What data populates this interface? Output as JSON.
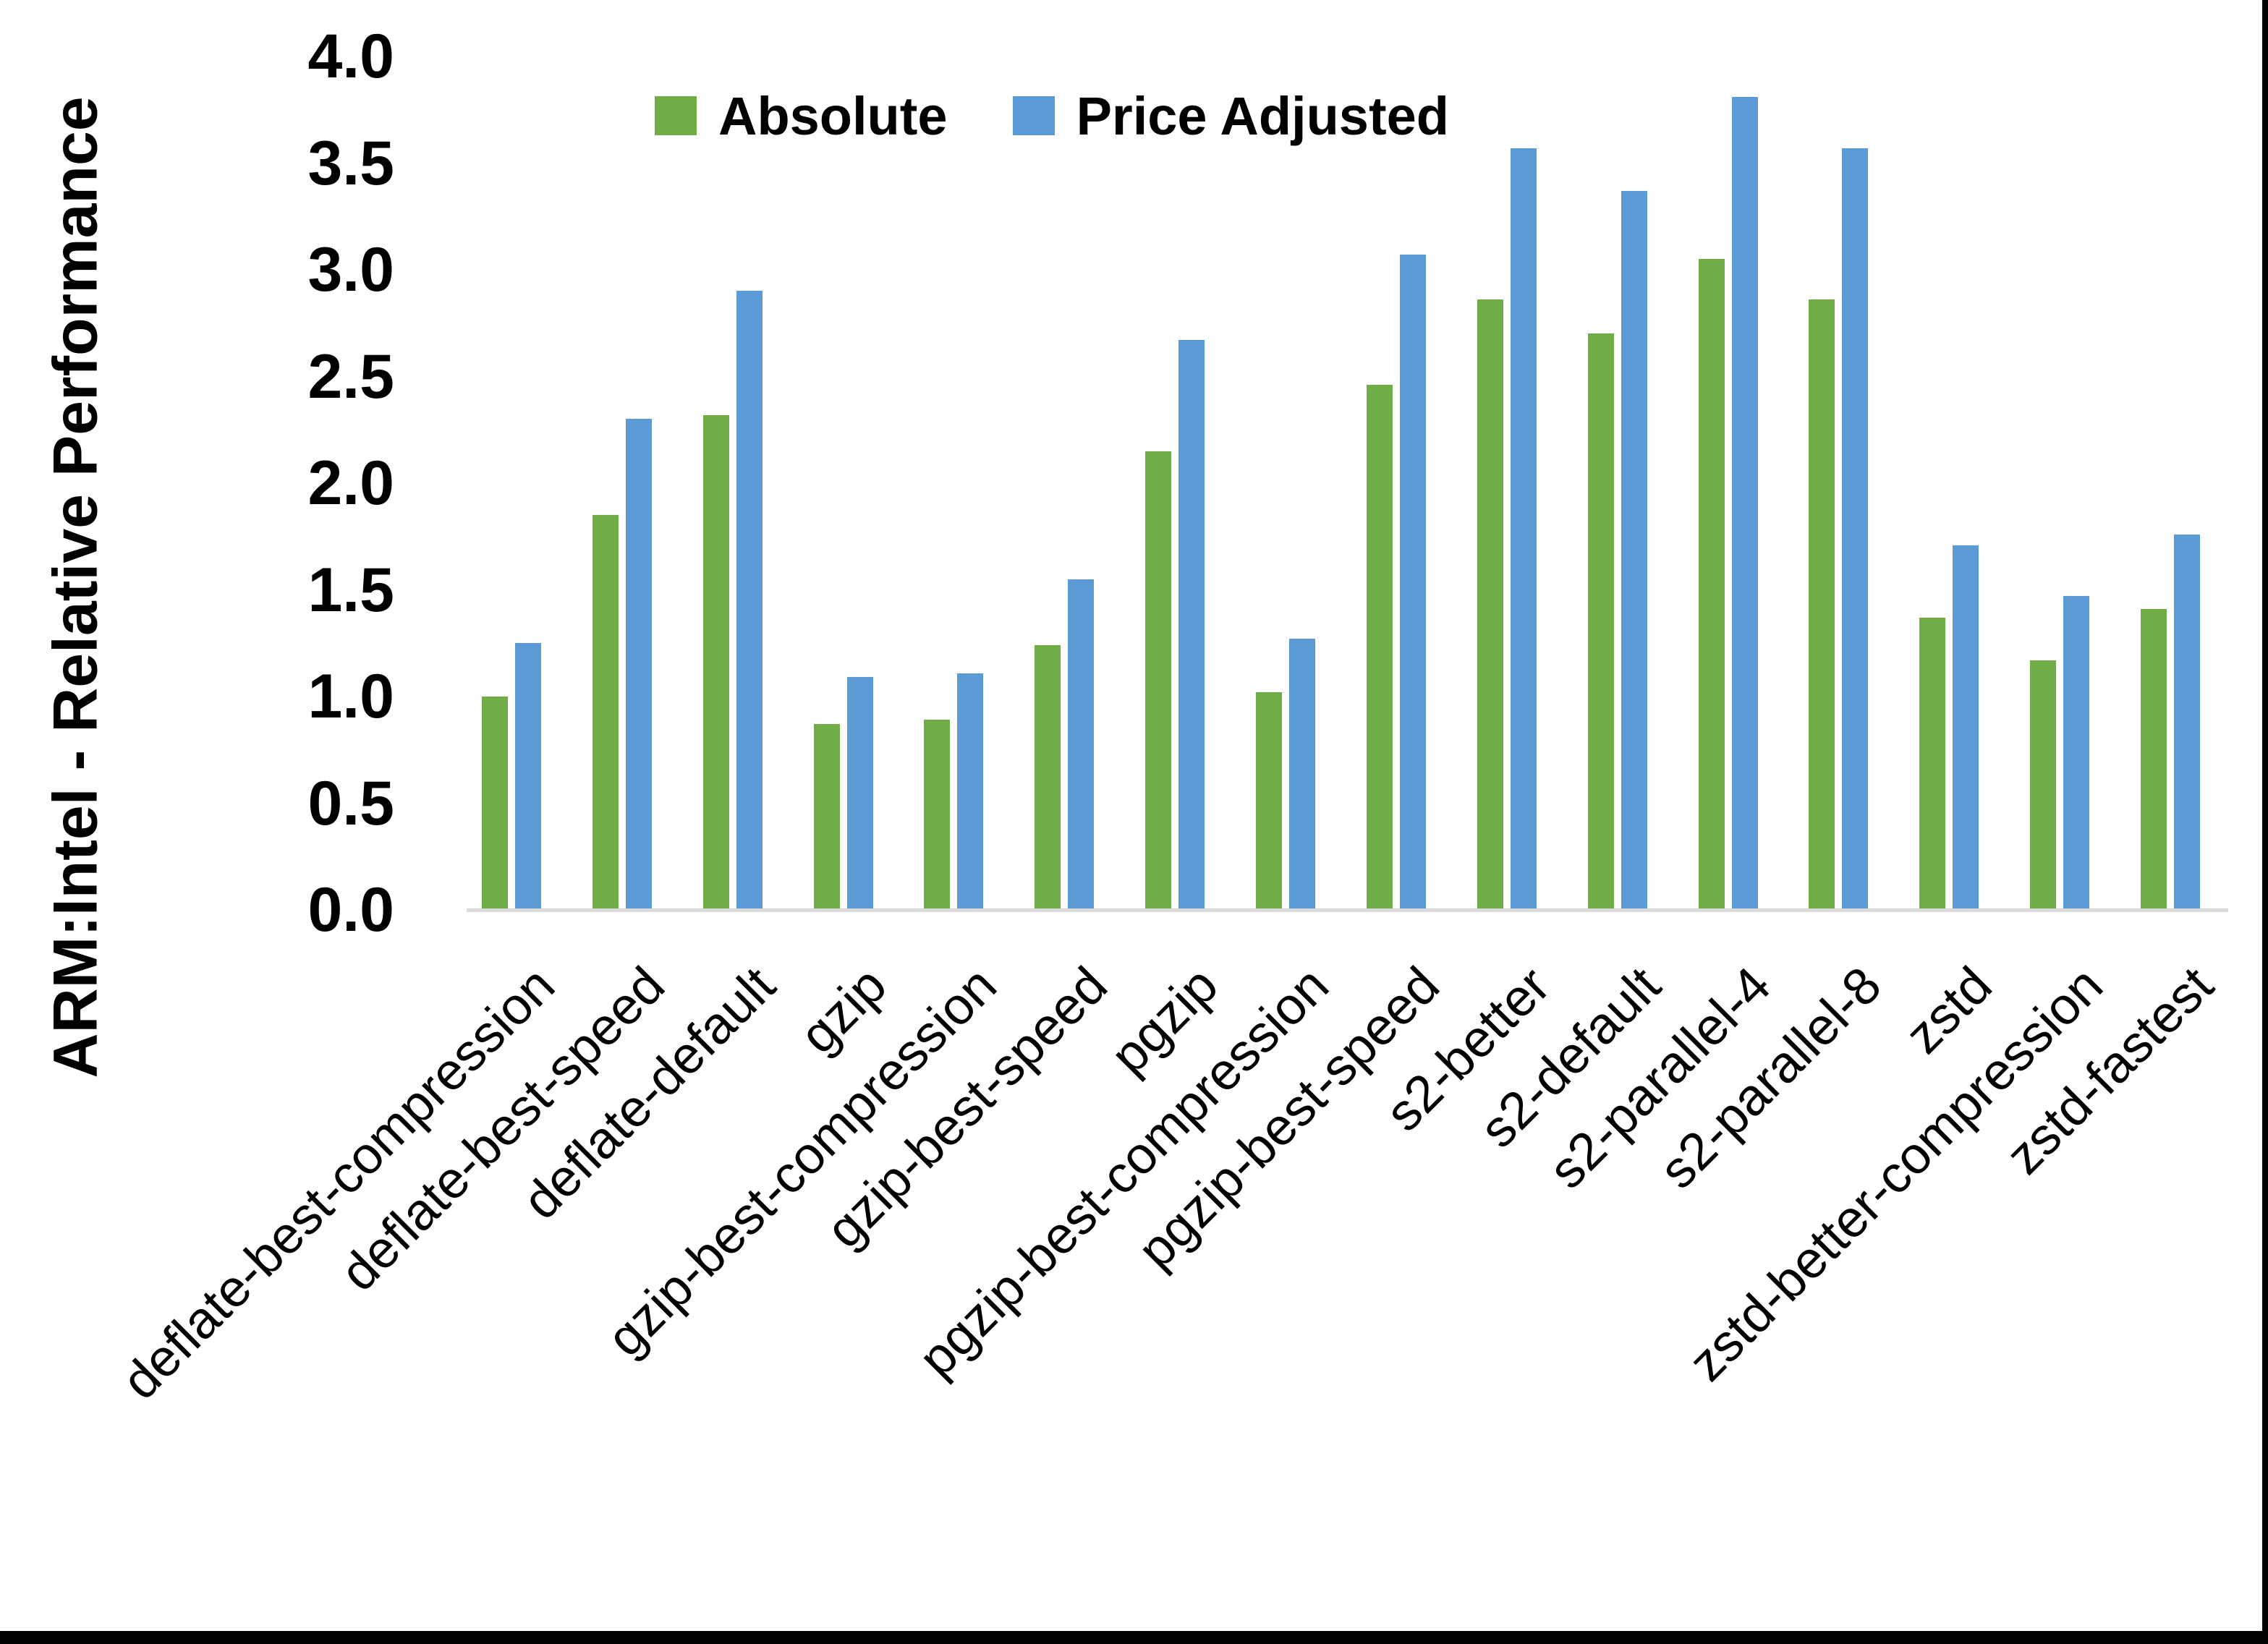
{
  "chart_data": {
    "type": "bar",
    "title": "",
    "ylabel": "ARM:Intel - Relative Performance",
    "xlabel": "",
    "categories": [
      "deflate-best-compression",
      "deflate-best-speed",
      "deflate-default",
      "gzip",
      "gzip-best-compression",
      "gzip-best-speed",
      "pgzip",
      "pgzip-best-compression",
      "pgzip-best-speed",
      "s2-better",
      "s2-default",
      "s2-parallel-4",
      "s2-parallel-8",
      "zstd",
      "zstd-better-compression",
      "zstd-fastest"
    ],
    "series": [
      {
        "name": "Absolute",
        "color": "#70AD47",
        "values": [
          1.0,
          1.85,
          2.32,
          0.87,
          0.89,
          1.24,
          2.15,
          1.02,
          2.46,
          2.86,
          2.7,
          3.05,
          2.86,
          1.37,
          1.17,
          1.41
        ]
      },
      {
        "name": "Price Adjusted",
        "color": "#5B9BD5",
        "values": [
          1.25,
          2.3,
          2.9,
          1.09,
          1.11,
          1.55,
          2.67,
          1.27,
          3.07,
          3.57,
          3.37,
          3.81,
          3.57,
          1.71,
          1.47,
          1.76
        ]
      }
    ],
    "ylim": [
      0.0,
      4.0
    ],
    "ytick_step": 0.5,
    "yticks": [
      "0.0",
      "0.5",
      "1.0",
      "1.5",
      "2.0",
      "2.5",
      "3.0",
      "3.5",
      "4.0"
    ],
    "legend_position": "top-center",
    "grid": false,
    "axis_line_color": "#D9D9D9"
  }
}
